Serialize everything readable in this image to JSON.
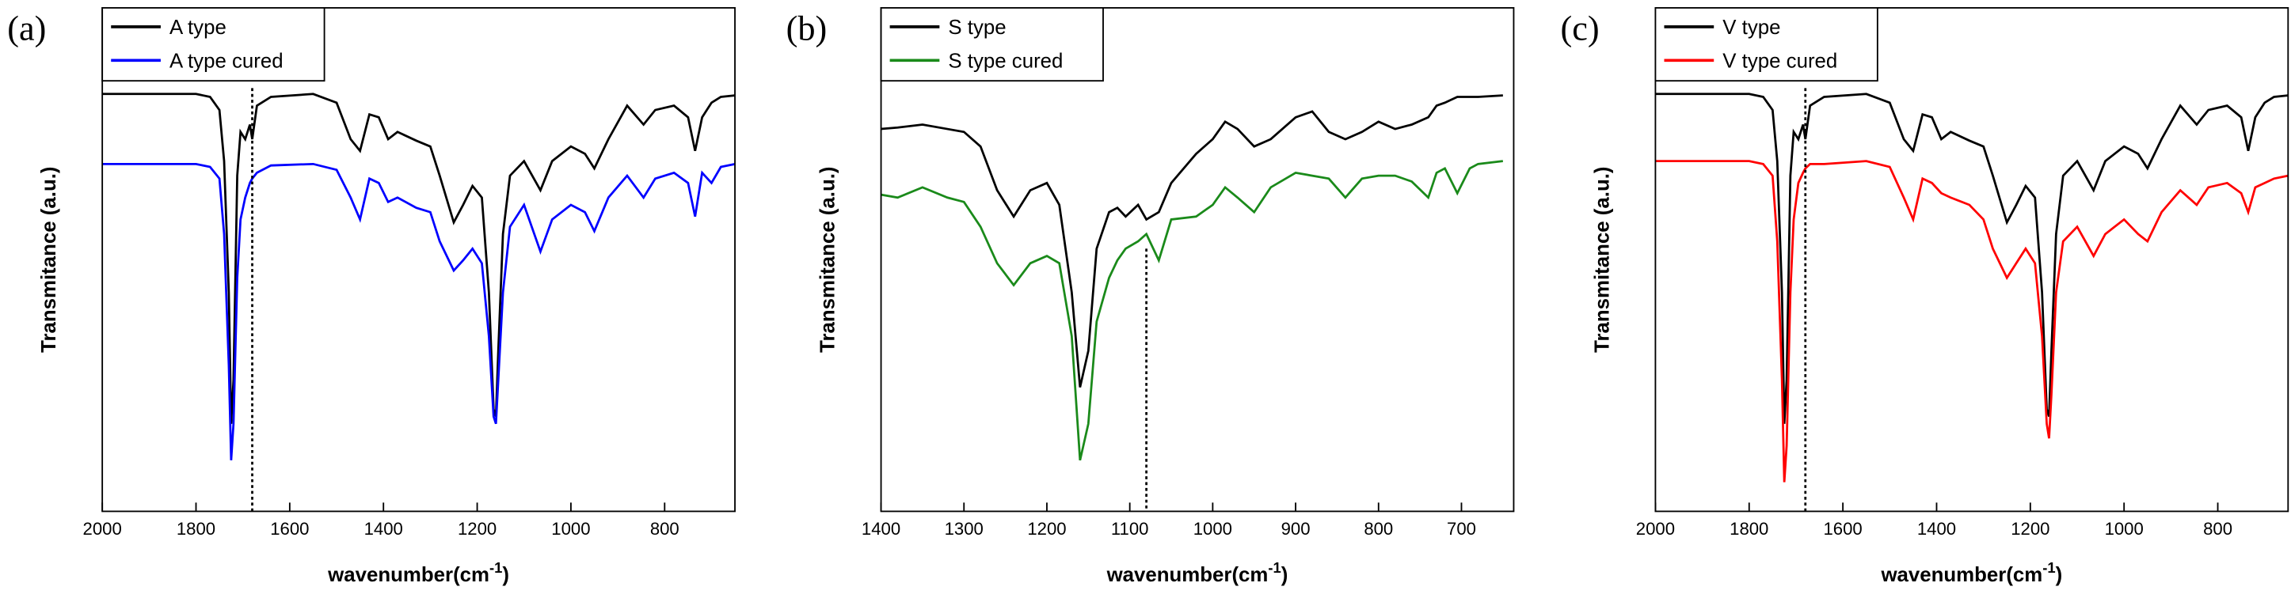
{
  "chart_data": [
    {
      "type": "line",
      "panel_label": "(a)",
      "xlabel": "wavenumber(cm",
      "xlabel_sup": "-1",
      "xlabel_end": ")",
      "ylabel": "Transmitance (a.u.)",
      "xlim": [
        2000,
        650
      ],
      "ylim": [
        0,
        345
      ],
      "xticks": [
        2000,
        1800,
        1600,
        1400,
        1200,
        1000,
        800
      ],
      "vline": 1680,
      "x": [
        2000,
        1800,
        1770,
        1750,
        1740,
        1730,
        1725,
        1720,
        1712,
        1705,
        1695,
        1685,
        1680,
        1670,
        1640,
        1550,
        1500,
        1470,
        1450,
        1430,
        1410,
        1390,
        1370,
        1330,
        1300,
        1280,
        1250,
        1230,
        1210,
        1190,
        1175,
        1165,
        1160,
        1155,
        1145,
        1130,
        1100,
        1065,
        1040,
        1000,
        970,
        950,
        920,
        880,
        845,
        820,
        780,
        750,
        735,
        720,
        700,
        680,
        650
      ],
      "series": [
        {
          "name": "A type",
          "color": "#000000",
          "values": [
            286,
            286,
            284,
            275,
            240,
            150,
            60,
            90,
            230,
            260,
            255,
            265,
            255,
            278,
            284,
            286,
            280,
            255,
            247,
            272,
            270,
            255,
            260,
            254,
            250,
            230,
            198,
            210,
            223,
            215,
            150,
            70,
            65,
            110,
            190,
            230,
            240,
            220,
            240,
            250,
            245,
            235,
            255,
            278,
            265,
            275,
            278,
            270,
            247,
            270,
            280,
            284,
            285
          ]
        },
        {
          "name": "A type cured",
          "color": "#0000ff",
          "values": [
            238,
            238,
            236,
            228,
            190,
            100,
            35,
            60,
            160,
            200,
            215,
            225,
            228,
            232,
            237,
            238,
            234,
            215,
            200,
            228,
            225,
            212,
            215,
            208,
            205,
            185,
            165,
            172,
            180,
            170,
            120,
            65,
            60,
            90,
            150,
            195,
            210,
            178,
            200,
            210,
            205,
            192,
            215,
            230,
            215,
            228,
            232,
            225,
            202,
            232,
            225,
            236,
            238
          ]
        }
      ]
    },
    {
      "type": "line",
      "panel_label": "(b)",
      "xlabel": "wavenumber(cm",
      "xlabel_sup": "-1",
      "xlabel_end": ")",
      "ylabel": "Transmitance (a.u.)",
      "xlim": [
        1400,
        637
      ],
      "ylim": [
        0,
        345
      ],
      "xticks": [
        1400,
        1300,
        1200,
        1100,
        1000,
        900,
        800,
        700
      ],
      "vline": 1080,
      "x": [
        1400,
        1380,
        1350,
        1320,
        1300,
        1280,
        1260,
        1240,
        1220,
        1200,
        1185,
        1170,
        1160,
        1150,
        1140,
        1125,
        1115,
        1105,
        1090,
        1080,
        1065,
        1050,
        1020,
        1000,
        985,
        970,
        950,
        930,
        900,
        880,
        860,
        840,
        820,
        800,
        780,
        760,
        740,
        730,
        720,
        705,
        690,
        680,
        650
      ],
      "series": [
        {
          "name": "S type",
          "color": "#000000",
          "values": [
            262,
            263,
            265,
            262,
            260,
            250,
            220,
            202,
            220,
            225,
            210,
            150,
            85,
            110,
            180,
            205,
            208,
            202,
            210,
            200,
            205,
            225,
            245,
            255,
            267,
            262,
            250,
            255,
            270,
            274,
            260,
            255,
            260,
            267,
            262,
            265,
            270,
            278,
            280,
            284,
            284,
            284,
            285
          ]
        },
        {
          "name": "S type cured",
          "color": "#1a8a1a",
          "values": [
            217,
            215,
            222,
            215,
            212,
            195,
            170,
            155,
            170,
            175,
            170,
            120,
            35,
            60,
            130,
            160,
            172,
            180,
            185,
            190,
            172,
            200,
            202,
            210,
            222,
            215,
            205,
            222,
            232,
            230,
            228,
            215,
            228,
            230,
            230,
            226,
            215,
            232,
            235,
            218,
            235,
            238,
            240
          ]
        }
      ]
    },
    {
      "type": "line",
      "panel_label": "(c)",
      "xlabel": "wavenumber(cm",
      "xlabel_sup": "-1",
      "xlabel_end": ")",
      "ylabel": "Transmitance (a.u.)",
      "xlim": [
        2000,
        650
      ],
      "ylim": [
        0,
        345
      ],
      "xticks": [
        2000,
        1800,
        1600,
        1400,
        1200,
        1000,
        800
      ],
      "vline": 1680,
      "x": [
        2000,
        1800,
        1770,
        1750,
        1740,
        1730,
        1725,
        1720,
        1712,
        1705,
        1695,
        1685,
        1680,
        1670,
        1640,
        1550,
        1500,
        1470,
        1450,
        1430,
        1410,
        1390,
        1370,
        1330,
        1300,
        1280,
        1250,
        1230,
        1210,
        1190,
        1175,
        1165,
        1160,
        1155,
        1145,
        1130,
        1100,
        1065,
        1040,
        1000,
        970,
        950,
        920,
        880,
        845,
        820,
        780,
        750,
        735,
        720,
        700,
        680,
        650
      ],
      "series": [
        {
          "name": "V type",
          "color": "#000000",
          "values": [
            286,
            286,
            284,
            275,
            240,
            150,
            60,
            90,
            230,
            260,
            255,
            265,
            255,
            278,
            284,
            286,
            280,
            255,
            247,
            272,
            270,
            255,
            260,
            254,
            250,
            230,
            198,
            210,
            223,
            215,
            150,
            70,
            65,
            110,
            190,
            230,
            240,
            220,
            240,
            250,
            245,
            235,
            255,
            278,
            265,
            275,
            278,
            270,
            247,
            270,
            280,
            284,
            285
          ]
        },
        {
          "name": "V type cured",
          "color": "#ff0000",
          "values": [
            240,
            240,
            238,
            230,
            185,
            90,
            20,
            45,
            150,
            200,
            225,
            232,
            235,
            238,
            238,
            240,
            236,
            215,
            200,
            228,
            225,
            218,
            215,
            210,
            200,
            180,
            160,
            170,
            180,
            170,
            120,
            60,
            50,
            80,
            150,
            185,
            195,
            175,
            190,
            200,
            190,
            185,
            205,
            220,
            210,
            222,
            225,
            218,
            205,
            222,
            225,
            228,
            230
          ]
        }
      ]
    }
  ]
}
